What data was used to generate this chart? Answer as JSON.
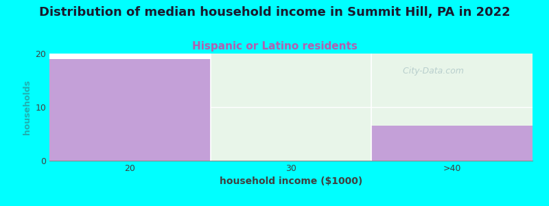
{
  "title": "Distribution of median household income in Summit Hill, PA in 2022",
  "subtitle": "Hispanic or Latino residents",
  "xlabel": "household income ($1000)",
  "ylabel": "households",
  "categories": [
    "20",
    "30",
    ">40"
  ],
  "values": [
    19,
    0,
    6.5
  ],
  "bar_color": "#c4a0d8",
  "background_color": "#00ffff",
  "plot_bg_color": "#f5faf5",
  "left_bg_color": "#ffffff",
  "right_bg_color": "#e8f5e9",
  "ylim": [
    0,
    20
  ],
  "yticks": [
    0,
    10,
    20
  ],
  "title_fontsize": 13,
  "subtitle_fontsize": 11,
  "subtitle_color": "#b060b0",
  "xlabel_fontsize": 10,
  "ylabel_fontsize": 9,
  "ylabel_color": "#20b0b0",
  "watermark": "  City-Data.com",
  "watermark_color": "#b0c8c8"
}
